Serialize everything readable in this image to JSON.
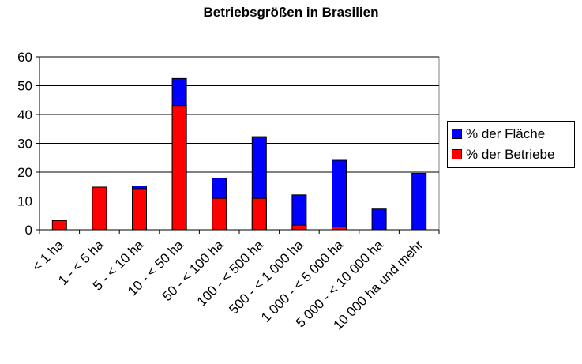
{
  "chart_data": {
    "type": "bar",
    "stacked": false,
    "overlapped": true,
    "title": "Betriebsgrößen in Brasilien",
    "xlabel": "",
    "ylabel": "",
    "ylim": [
      0,
      60
    ],
    "yticks": [
      0,
      10,
      20,
      30,
      40,
      50,
      60
    ],
    "grid": true,
    "legend_position": "right",
    "categories": [
      "< 1 ha",
      "1 - < 5 ha",
      "5 - < 10 ha",
      "10 - < 50 ha",
      "50 - < 100 ha",
      "100 - < 500 ha",
      "500 - < 1 000 ha",
      "1 000 - < 5 000 ha",
      "5 000 - < 10 000 ha",
      "10 000 ha und mehr"
    ],
    "series": [
      {
        "name": "% der Fläche",
        "color": "#0000ff",
        "values": [
          0,
          0,
          15.2,
          52.5,
          17.9,
          32.3,
          12.1,
          24.1,
          7.2,
          19.6
        ]
      },
      {
        "name": "% der Betriebe",
        "color": "#ff0000",
        "values": [
          3.2,
          14.8,
          14.3,
          43.1,
          10.9,
          10.9,
          1.6,
          1.0,
          0,
          0
        ]
      }
    ]
  }
}
